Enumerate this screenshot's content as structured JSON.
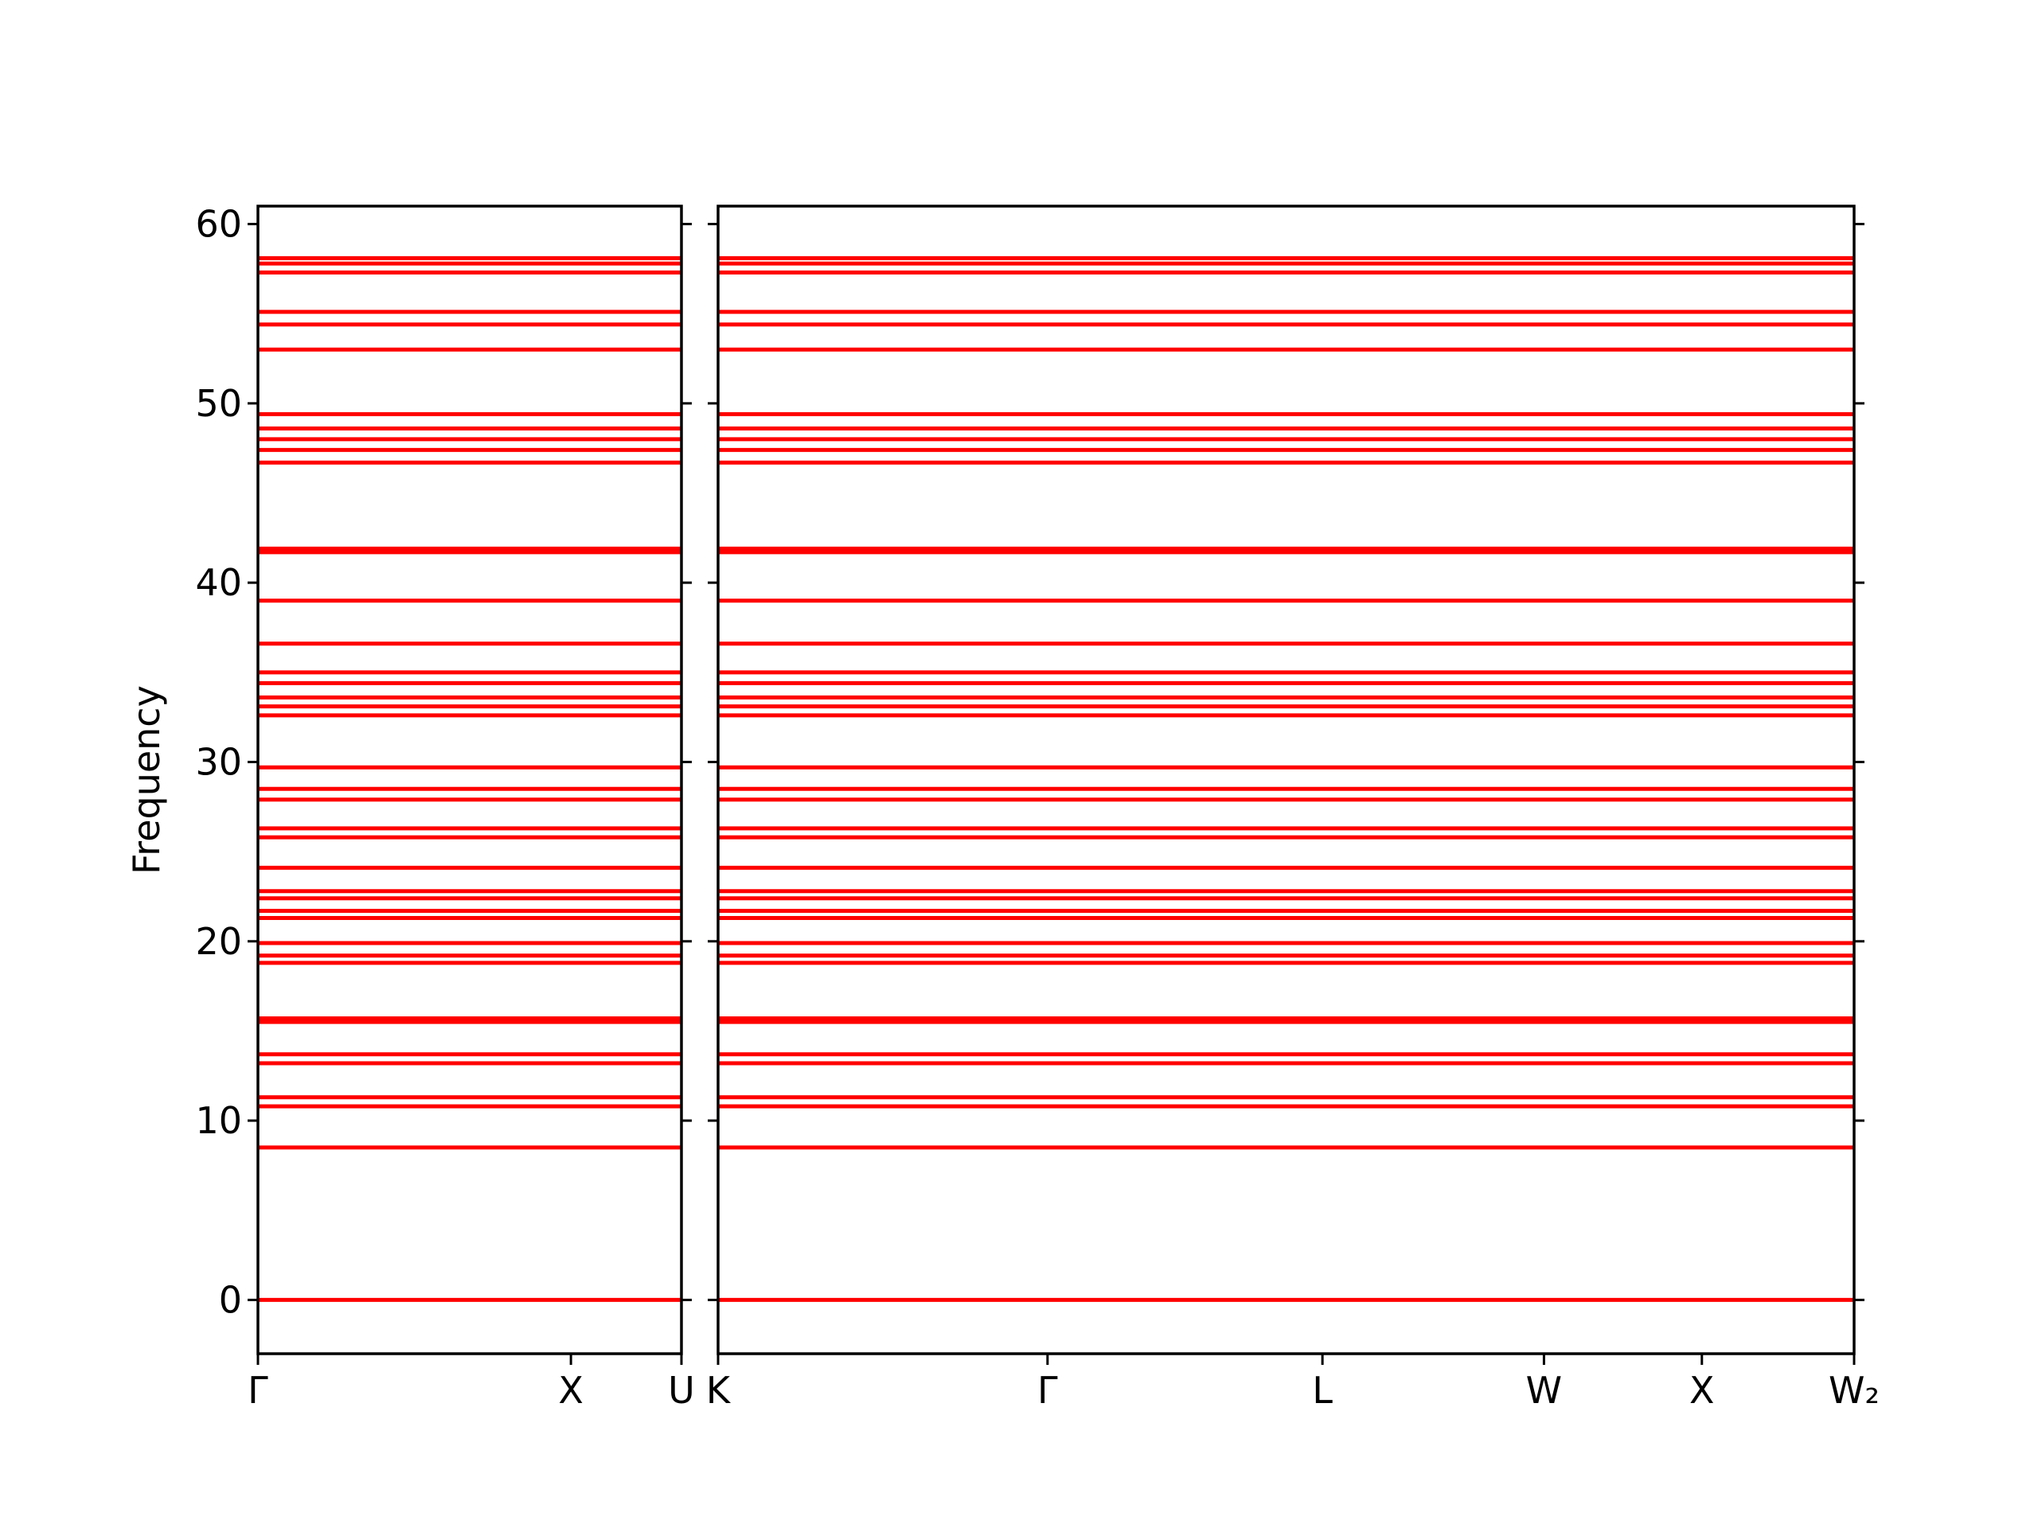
{
  "chart_data": [
    {
      "type": "line",
      "ylabel": "Frequency",
      "color": "#ff0000",
      "x": [
        0,
        1
      ],
      "xlim": [
        0,
        1
      ],
      "ylim": [
        -3,
        61
      ],
      "yticks": [
        0,
        10,
        20,
        30,
        40,
        50,
        60
      ],
      "ytick_labels": true,
      "xticks": [
        {
          "value": 0,
          "label": "Γ"
        },
        {
          "value": 0.739,
          "label": "X"
        },
        {
          "value": 1,
          "label": "U"
        }
      ],
      "series": [
        {
          "values": [
            0,
            0
          ]
        },
        {
          "values": [
            8.5,
            8.5
          ]
        },
        {
          "values": [
            10.8,
            10.8
          ]
        },
        {
          "values": [
            11.3,
            11.3
          ]
        },
        {
          "values": [
            13.2,
            13.2
          ]
        },
        {
          "values": [
            13.7,
            13.7
          ]
        },
        {
          "values": [
            15.5,
            15.5
          ]
        },
        {
          "values": [
            15.7,
            15.7
          ]
        },
        {
          "values": [
            18.8,
            18.8
          ]
        },
        {
          "values": [
            19.2,
            19.2
          ]
        },
        {
          "values": [
            19.9,
            19.9
          ]
        },
        {
          "values": [
            21.3,
            21.3
          ]
        },
        {
          "values": [
            21.7,
            21.7
          ]
        },
        {
          "values": [
            22.4,
            22.4
          ]
        },
        {
          "values": [
            22.8,
            22.8
          ]
        },
        {
          "values": [
            24.1,
            24.1
          ]
        },
        {
          "values": [
            25.8,
            25.8
          ]
        },
        {
          "values": [
            26.3,
            26.3
          ]
        },
        {
          "values": [
            27.9,
            27.9
          ]
        },
        {
          "values": [
            28.5,
            28.5
          ]
        },
        {
          "values": [
            29.7,
            29.7
          ]
        },
        {
          "values": [
            32.6,
            32.6
          ]
        },
        {
          "values": [
            33.1,
            33.1
          ]
        },
        {
          "values": [
            33.6,
            33.6
          ]
        },
        {
          "values": [
            34.4,
            34.4
          ]
        },
        {
          "values": [
            35.0,
            35.0
          ]
        },
        {
          "values": [
            36.6,
            36.6
          ]
        },
        {
          "values": [
            39.0,
            39.0
          ]
        },
        {
          "values": [
            41.7,
            41.7
          ]
        },
        {
          "values": [
            41.9,
            41.9
          ]
        },
        {
          "values": [
            46.7,
            46.7
          ]
        },
        {
          "values": [
            47.4,
            47.4
          ]
        },
        {
          "values": [
            48.0,
            48.0
          ]
        },
        {
          "values": [
            48.6,
            48.6
          ]
        },
        {
          "values": [
            49.4,
            49.4
          ]
        },
        {
          "values": [
            53.0,
            53.0
          ]
        },
        {
          "values": [
            54.4,
            54.4
          ]
        },
        {
          "values": [
            55.1,
            55.1
          ]
        },
        {
          "values": [
            57.3,
            57.3
          ]
        },
        {
          "values": [
            57.8,
            57.8
          ]
        },
        {
          "values": [
            58.1,
            58.1
          ]
        }
      ]
    },
    {
      "type": "line",
      "color": "#ff0000",
      "x": [
        0,
        1
      ],
      "xlim": [
        0,
        1
      ],
      "ylim": [
        -3,
        61
      ],
      "yticks": [
        0,
        10,
        20,
        30,
        40,
        50,
        60
      ],
      "ytick_labels": false,
      "xticks": [
        {
          "value": 0,
          "label": "K"
        },
        {
          "value": 0.29,
          "label": "Γ"
        },
        {
          "value": 0.532,
          "label": "L"
        },
        {
          "value": 0.727,
          "label": "W"
        },
        {
          "value": 0.866,
          "label": "X"
        },
        {
          "value": 1,
          "label": "W₂"
        }
      ],
      "series": [
        {
          "values": [
            0,
            0
          ]
        },
        {
          "values": [
            8.5,
            8.5
          ]
        },
        {
          "values": [
            10.8,
            10.8
          ]
        },
        {
          "values": [
            11.3,
            11.3
          ]
        },
        {
          "values": [
            13.2,
            13.2
          ]
        },
        {
          "values": [
            13.7,
            13.7
          ]
        },
        {
          "values": [
            15.5,
            15.5
          ]
        },
        {
          "values": [
            15.7,
            15.7
          ]
        },
        {
          "values": [
            18.8,
            18.8
          ]
        },
        {
          "values": [
            19.2,
            19.2
          ]
        },
        {
          "values": [
            19.9,
            19.9
          ]
        },
        {
          "values": [
            21.3,
            21.3
          ]
        },
        {
          "values": [
            21.7,
            21.7
          ]
        },
        {
          "values": [
            22.4,
            22.4
          ]
        },
        {
          "values": [
            22.8,
            22.8
          ]
        },
        {
          "values": [
            24.1,
            24.1
          ]
        },
        {
          "values": [
            25.8,
            25.8
          ]
        },
        {
          "values": [
            26.3,
            26.3
          ]
        },
        {
          "values": [
            27.9,
            27.9
          ]
        },
        {
          "values": [
            28.5,
            28.5
          ]
        },
        {
          "values": [
            29.7,
            29.7
          ]
        },
        {
          "values": [
            32.6,
            32.6
          ]
        },
        {
          "values": [
            33.1,
            33.1
          ]
        },
        {
          "values": [
            33.6,
            33.6
          ]
        },
        {
          "values": [
            34.4,
            34.4
          ]
        },
        {
          "values": [
            35.0,
            35.0
          ]
        },
        {
          "values": [
            36.6,
            36.6
          ]
        },
        {
          "values": [
            39.0,
            39.0
          ]
        },
        {
          "values": [
            41.7,
            41.7
          ]
        },
        {
          "values": [
            41.9,
            41.9
          ]
        },
        {
          "values": [
            46.7,
            46.7
          ]
        },
        {
          "values": [
            47.4,
            47.4
          ]
        },
        {
          "values": [
            48.0,
            48.0
          ]
        },
        {
          "values": [
            48.6,
            48.6
          ]
        },
        {
          "values": [
            49.4,
            49.4
          ]
        },
        {
          "values": [
            53.0,
            53.0
          ]
        },
        {
          "values": [
            54.4,
            54.4
          ]
        },
        {
          "values": [
            55.1,
            55.1
          ]
        },
        {
          "values": [
            57.3,
            57.3
          ]
        },
        {
          "values": [
            57.8,
            57.8
          ]
        },
        {
          "values": [
            58.1,
            58.1
          ]
        }
      ]
    }
  ]
}
